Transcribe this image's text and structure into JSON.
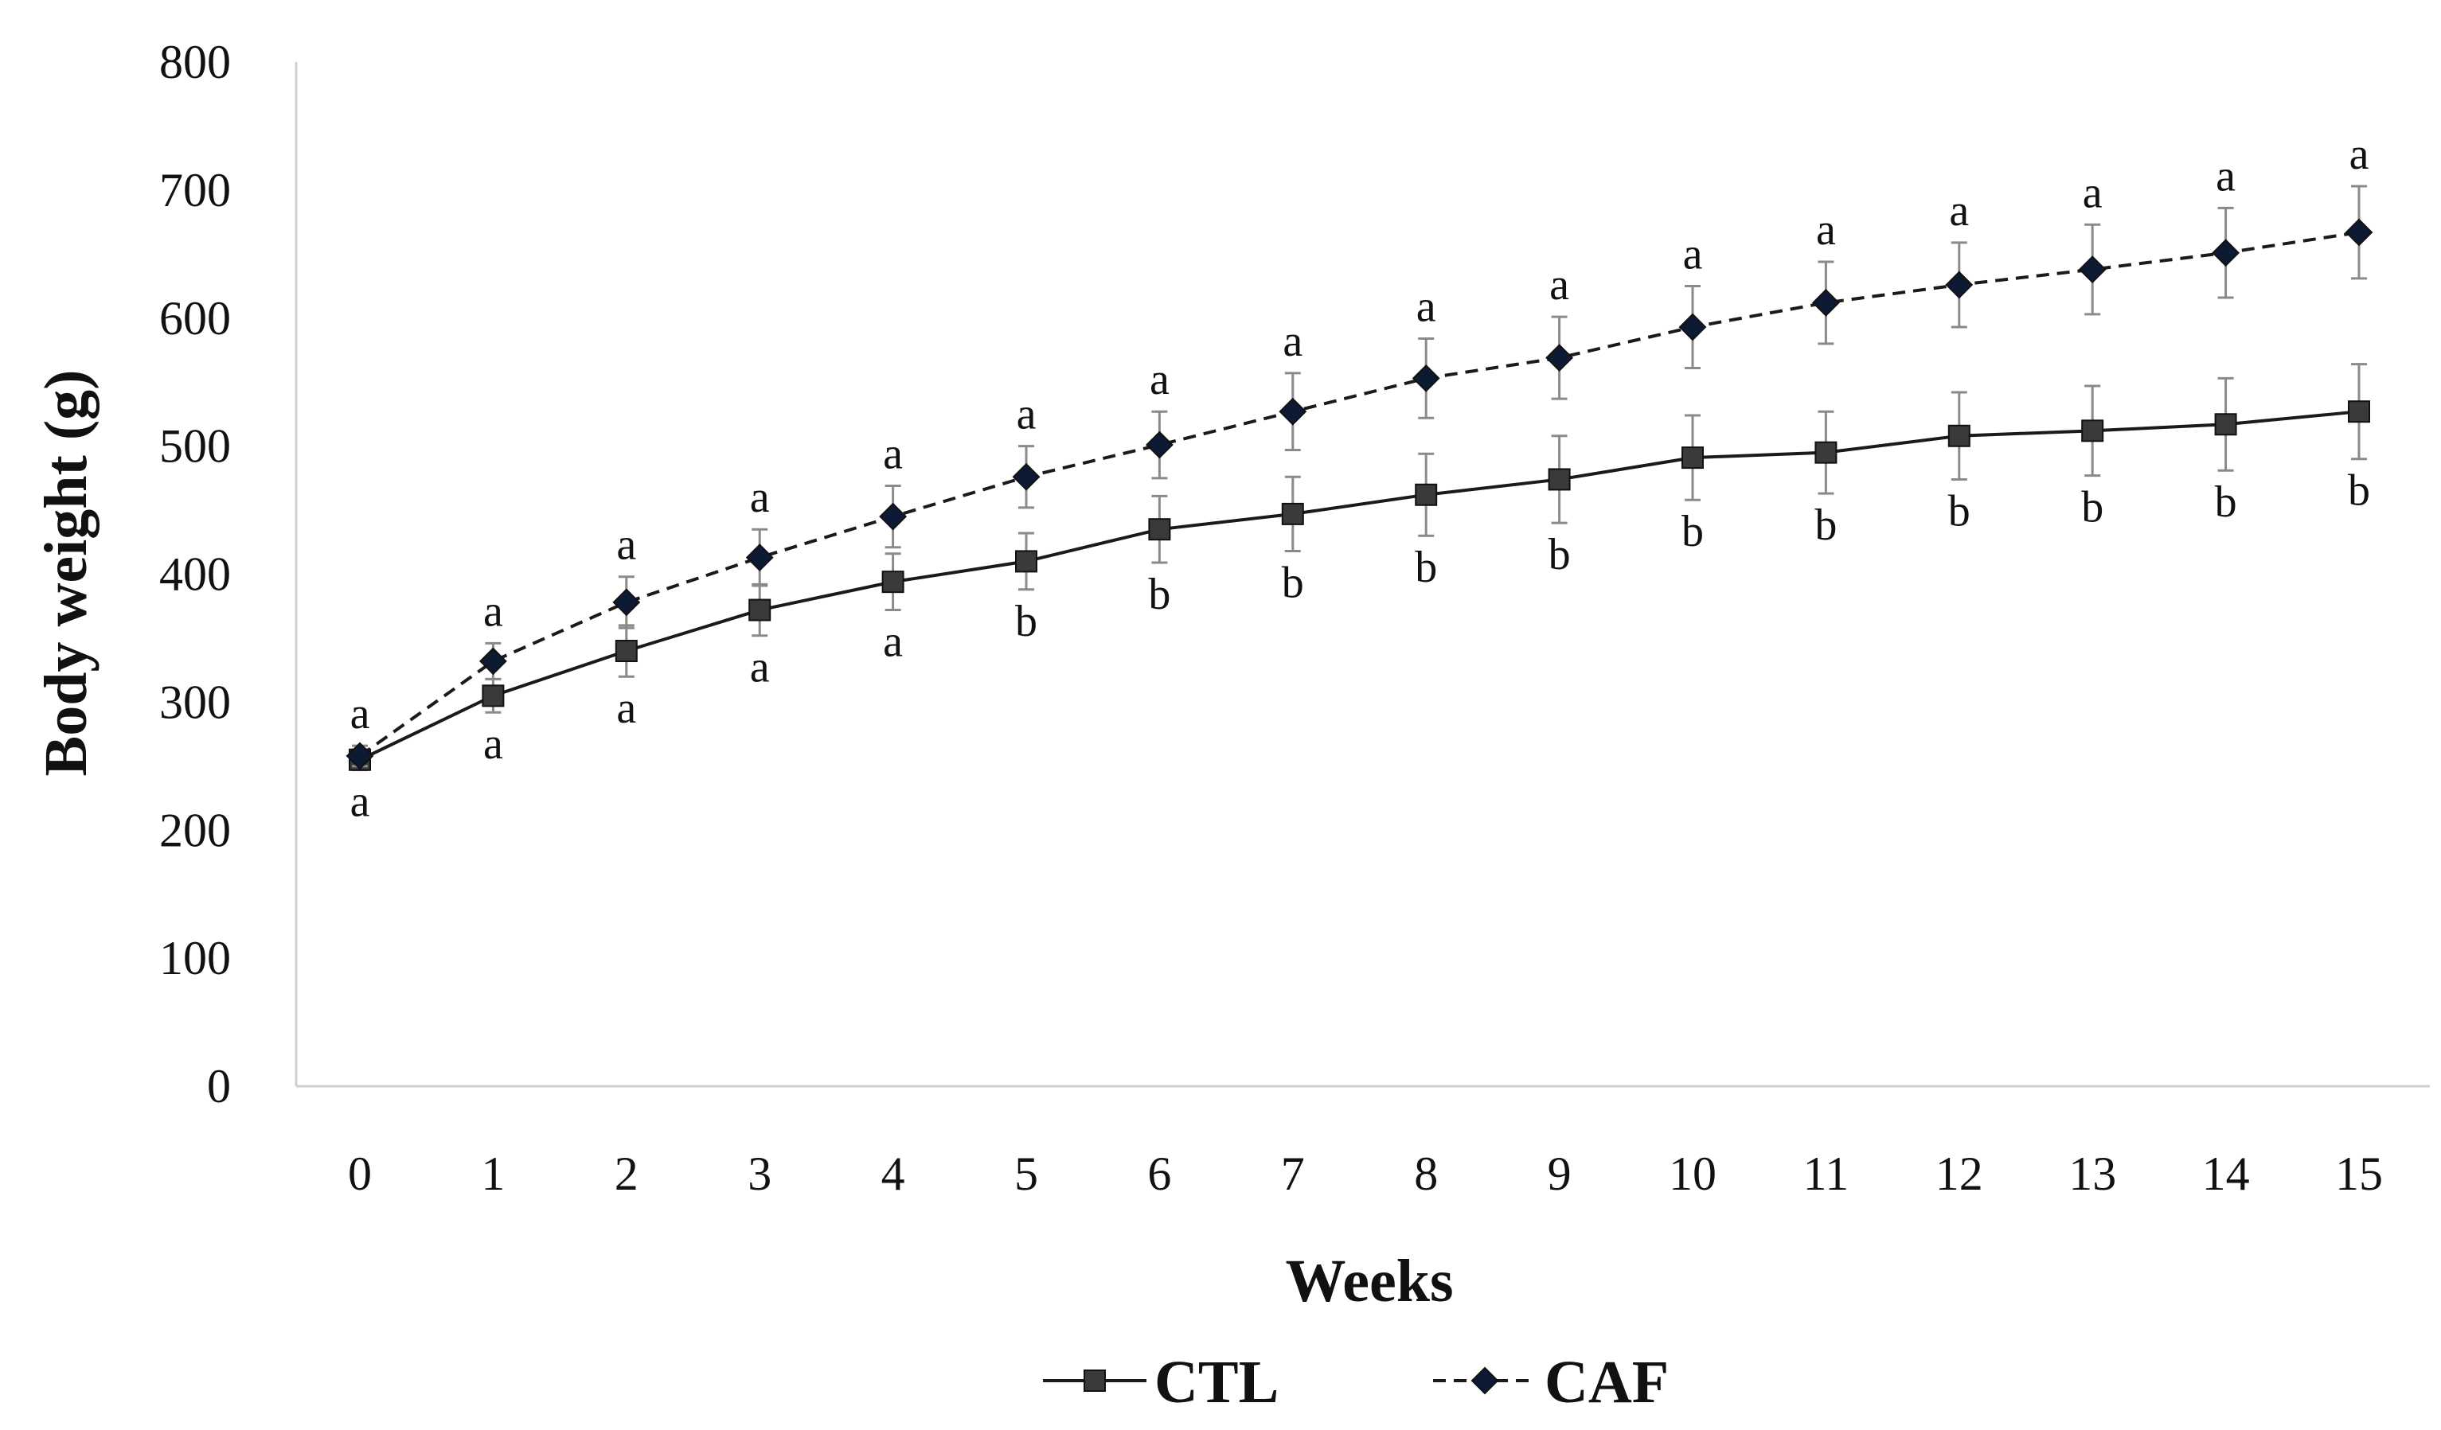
{
  "chart_data": {
    "type": "line",
    "title": "",
    "xlabel": "Weeks",
    "ylabel": "Body weight (g)",
    "ylim": [
      0,
      800
    ],
    "yticks": [
      0,
      100,
      200,
      300,
      400,
      500,
      600,
      700,
      800
    ],
    "x": [
      0,
      1,
      2,
      3,
      4,
      5,
      6,
      7,
      8,
      9,
      10,
      11,
      12,
      13,
      14,
      15
    ],
    "grid": false,
    "legend_position": "bottom",
    "series": [
      {
        "name": "CTL",
        "marker": "square",
        "line_style": "solid",
        "color": "#1a1a1a",
        "marker_color": "#3a3a3a",
        "values": [
          255,
          305,
          340,
          372,
          394,
          410,
          435,
          447,
          462,
          474,
          491,
          495,
          508,
          512,
          517,
          527
        ],
        "error": [
          8,
          13,
          20,
          20,
          22,
          22,
          26,
          29,
          32,
          34,
          33,
          32,
          34,
          35,
          36,
          37
        ],
        "significance": [
          "a",
          "a",
          "a",
          "a",
          "a",
          "b",
          "b",
          "b",
          "b",
          "b",
          "b",
          "b",
          "b",
          "b",
          "b",
          "b"
        ]
      },
      {
        "name": "CAF",
        "marker": "diamond",
        "line_style": "dashed",
        "color": "#1a1a1a",
        "marker_color": "#0d1a33",
        "values": [
          258,
          332,
          378,
          413,
          445,
          476,
          501,
          527,
          553,
          569,
          593,
          612,
          626,
          638,
          651,
          667
        ],
        "error": [
          8,
          14,
          20,
          22,
          24,
          24,
          26,
          30,
          31,
          32,
          32,
          32,
          33,
          35,
          35,
          36
        ],
        "significance": [
          "a",
          "a",
          "a",
          "a",
          "a",
          "a",
          "a",
          "a",
          "a",
          "a",
          "a",
          "a",
          "a",
          "a",
          "a",
          "a"
        ]
      }
    ]
  }
}
